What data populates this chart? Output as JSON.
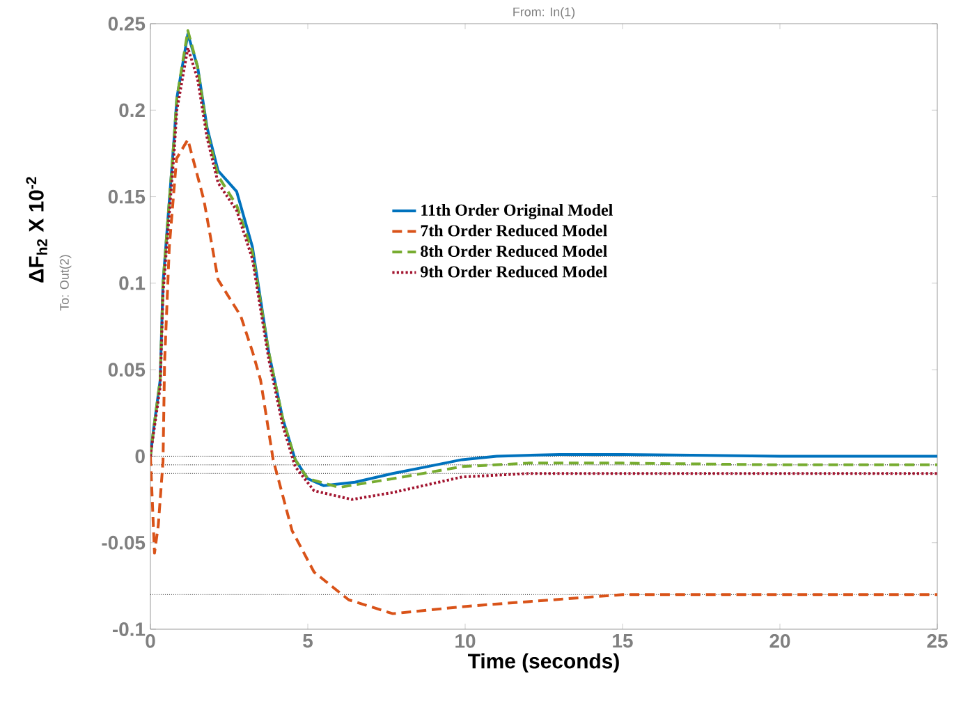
{
  "chart_data": {
    "type": "line",
    "title": "From: In(1)",
    "xlabel": "Time (seconds)",
    "ylabel": "ΔF$_{h2}$ X 10$^{-2}$",
    "annotations": [
      "To: Out(2)"
    ],
    "xlim": [
      0,
      25
    ],
    "ylim": [
      -0.1,
      0.25
    ],
    "xticks": [
      0,
      5,
      10,
      15,
      20,
      25
    ],
    "yticks": [
      -0.1,
      -0.05,
      0,
      0.05,
      0.1,
      0.15,
      0.2,
      0.25
    ],
    "grid": false,
    "legend": "center",
    "ref_lines": [
      {
        "axis": "y",
        "value": 0,
        "color": "#000000",
        "line_style": "dotted"
      },
      {
        "axis": "y",
        "value": -0.005,
        "color": "#000000",
        "line_style": "dotted"
      },
      {
        "axis": "y",
        "value": -0.01,
        "color": "#000000",
        "line_style": "dotted"
      },
      {
        "axis": "y",
        "value": -0.08,
        "color": "#000000",
        "line_style": "dotted"
      }
    ],
    "series": [
      {
        "name": "11th Order Original Model",
        "color": "#0072bd",
        "line_style": "solid",
        "x": [
          0,
          0.09,
          0.31,
          0.4,
          0.75,
          0.84,
          1.19,
          1.5,
          1.8,
          2.15,
          2.74,
          3.24,
          3.76,
          4.2,
          4.6,
          5.0,
          5.5,
          6.5,
          7.7,
          8.8,
          9.9,
          11,
          13,
          15,
          20,
          25
        ],
        "values": [
          0,
          0.014,
          0.044,
          0.1,
          0.183,
          0.207,
          0.244,
          0.225,
          0.19,
          0.165,
          0.153,
          0.121,
          0.06,
          0.022,
          -0.002,
          -0.013,
          -0.017,
          -0.015,
          -0.01,
          -0.006,
          -0.002,
          0,
          0.001,
          0.001,
          0,
          0
        ]
      },
      {
        "name": "7th Order Reduced Model",
        "color": "#d95319",
        "line_style": "dashed",
        "x": [
          0,
          0.13,
          0.25,
          0.4,
          0.45,
          0.6,
          0.83,
          1.19,
          1.7,
          2.15,
          2.87,
          3.25,
          3.5,
          3.9,
          4.5,
          5.2,
          6.3,
          7.7,
          9.9,
          11.3,
          15,
          20,
          25
        ],
        "values": [
          0,
          -0.056,
          -0.04,
          -0.003,
          0.054,
          0.121,
          0.172,
          0.183,
          0.148,
          0.102,
          0.081,
          0.06,
          0.044,
          -0.002,
          -0.043,
          -0.067,
          -0.083,
          -0.091,
          -0.087,
          -0.085,
          -0.08,
          -0.08,
          -0.08
        ]
      },
      {
        "name": "8th Order Reduced Model",
        "color": "#77ac30",
        "line_style": "dashed",
        "x": [
          0,
          0.09,
          0.31,
          0.4,
          0.75,
          0.84,
          1.19,
          1.5,
          1.8,
          2.15,
          2.74,
          3.24,
          3.76,
          4.2,
          4.6,
          5.0,
          6.0,
          7.7,
          9.9,
          12,
          15,
          20,
          25
        ],
        "values": [
          0,
          0.014,
          0.044,
          0.1,
          0.183,
          0.207,
          0.246,
          0.225,
          0.188,
          0.162,
          0.145,
          0.118,
          0.06,
          0.022,
          -0.002,
          -0.013,
          -0.018,
          -0.013,
          -0.006,
          -0.004,
          -0.004,
          -0.005,
          -0.005
        ]
      },
      {
        "name": "9th Order Reduced Model",
        "color": "#a2142f",
        "line_style": "dotted",
        "x": [
          0,
          0.09,
          0.31,
          0.4,
          0.75,
          0.84,
          1.19,
          1.5,
          1.8,
          2.15,
          2.74,
          3.24,
          3.76,
          4.2,
          4.6,
          5.2,
          6.4,
          7.7,
          9.9,
          12,
          15,
          20,
          25
        ],
        "values": [
          0,
          0.012,
          0.04,
          0.094,
          0.175,
          0.2,
          0.236,
          0.218,
          0.184,
          0.158,
          0.142,
          0.114,
          0.056,
          0.018,
          -0.006,
          -0.02,
          -0.025,
          -0.021,
          -0.012,
          -0.01,
          -0.01,
          -0.01,
          -0.01
        ]
      }
    ]
  }
}
